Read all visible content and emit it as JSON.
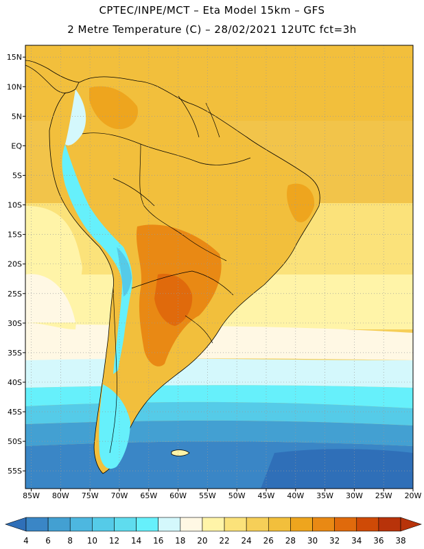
{
  "header": {
    "title_line1": "CPTEC/INPE/MCT –  Eta Model 15km – GFS",
    "title_line2": "2 Metre Temperature (C) – 28/02/2021 12UTC fct=3h"
  },
  "map": {
    "lon_range": [
      -86,
      -20
    ],
    "lat_range": [
      -58,
      17
    ],
    "lat_labels": [
      "15N",
      "10N",
      "5N",
      "EQ",
      "5S",
      "10S",
      "15S",
      "20S",
      "25S",
      "30S",
      "35S",
      "40S",
      "45S",
      "50S",
      "55S"
    ],
    "lat_values": [
      15,
      10,
      5,
      0,
      -5,
      -10,
      -15,
      -20,
      -25,
      -30,
      -35,
      -40,
      -45,
      -50,
      -55
    ],
    "lon_labels": [
      "85W",
      "80W",
      "75W",
      "70W",
      "65W",
      "60W",
      "55W",
      "50W",
      "45W",
      "40W",
      "35W",
      "30W",
      "25W",
      "20W"
    ],
    "lon_values": [
      -85,
      -80,
      -75,
      -70,
      -65,
      -60,
      -55,
      -50,
      -45,
      -40,
      -35,
      -30,
      -25,
      -20
    ],
    "gridlines": "dotted"
  },
  "colorbar": {
    "labels": [
      "4",
      "6",
      "8",
      "10",
      "12",
      "14",
      "16",
      "18",
      "20",
      "22",
      "24",
      "26",
      "28",
      "30",
      "32",
      "34",
      "36",
      "38"
    ],
    "values": [
      4,
      6,
      8,
      10,
      12,
      14,
      16,
      18,
      20,
      22,
      24,
      26,
      28,
      30,
      32,
      34,
      36,
      38
    ],
    "colors": [
      "#2f6fb8",
      "#3a86c6",
      "#43a0d2",
      "#4db7e0",
      "#55cbe8",
      "#5fdcee",
      "#66f0fb",
      "#d4f8fc",
      "#fff8e4",
      "#fff4a8",
      "#fbe27a",
      "#f6cf58",
      "#f2bf3c",
      "#eea51e",
      "#e98914",
      "#e06a0c",
      "#cf4a06",
      "#b8330a"
    ],
    "under_color": "#2f6fb8",
    "over_color": "#b8330a"
  }
}
